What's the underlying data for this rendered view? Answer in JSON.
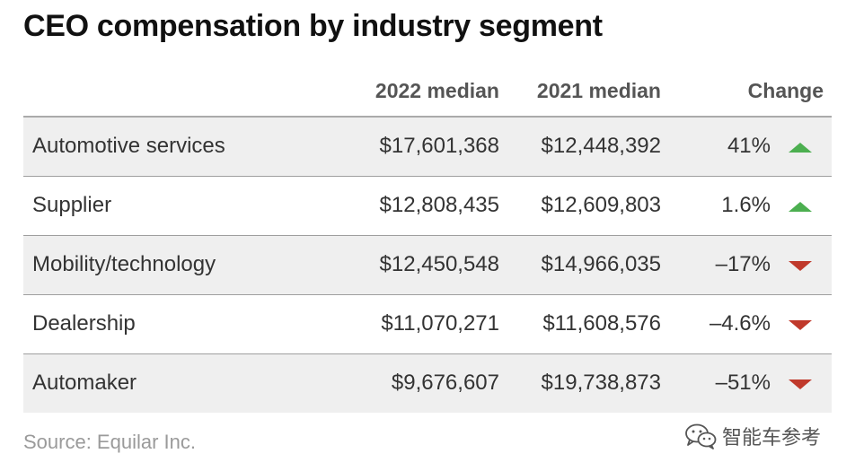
{
  "title": "CEO compensation by industry segment",
  "columns": {
    "segment": "",
    "median_2022": "2022 median",
    "median_2021": "2021 median",
    "change": "Change"
  },
  "rows": [
    {
      "segment": "Automotive services",
      "median_2022": "$17,601,368",
      "median_2021": "$12,448,392",
      "change": "41%",
      "direction": "up"
    },
    {
      "segment": "Supplier",
      "median_2022": "$12,808,435",
      "median_2021": "$12,609,803",
      "change": "1.6%",
      "direction": "up"
    },
    {
      "segment": "Mobility/technology",
      "median_2022": "$12,450,548",
      "median_2021": "$14,966,035",
      "change": "–17%",
      "direction": "down"
    },
    {
      "segment": "Dealership",
      "median_2022": "$11,070,271",
      "median_2021": "$11,608,576",
      "change": "–4.6%",
      "direction": "down"
    },
    {
      "segment": "Automaker",
      "median_2022": "$9,676,607",
      "median_2021": "$19,738,873",
      "change": "–51%",
      "direction": "down"
    }
  ],
  "source": "Source: Equilar Inc.",
  "watermark": {
    "text": "智能车参考",
    "icon": "wechat-icon"
  },
  "colors": {
    "up": "#4caf50",
    "down": "#c0392b",
    "row_shade": "#efefef"
  }
}
